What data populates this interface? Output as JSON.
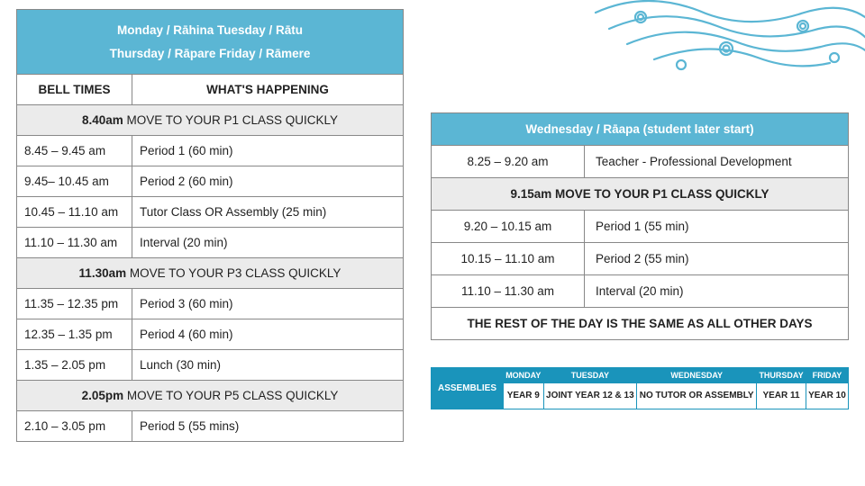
{
  "colors": {
    "header_blue": "#5bb6d4",
    "assembly_teal": "#1a94bb",
    "banner_grey": "#ebebeb",
    "border": "#888888",
    "text": "#222222",
    "white": "#ffffff"
  },
  "main": {
    "header_line1": "Monday / Rāhina   Tuesday / Rātu",
    "header_line2": "Thursday / Rāpare   Friday / Rāmere",
    "col1": "BELL TIMES",
    "col2": "WHAT'S HAPPENING",
    "rows": [
      {
        "type": "banner",
        "bold": "8.40am",
        "text": " MOVE TO YOUR P1 CLASS QUICKLY"
      },
      {
        "type": "row",
        "time": "8.45 – 9.45 am",
        "desc": "Period 1  (60 min)"
      },
      {
        "type": "row",
        "time": "9.45– 10.45 am",
        "desc": "Period 2  (60 min)"
      },
      {
        "type": "row",
        "time": "10.45 – 11.10 am",
        "desc": "Tutor Class OR Assembly (25 min)"
      },
      {
        "type": "row",
        "time": "11.10 – 11.30 am",
        "desc": "Interval  (20 min)"
      },
      {
        "type": "banner",
        "bold": "11.30am",
        "text": " MOVE TO YOUR P3 CLASS QUICKLY"
      },
      {
        "type": "row",
        "time": "11.35 – 12.35 pm",
        "desc": "Period 3  (60 min)"
      },
      {
        "type": "row",
        "time": "12.35 – 1.35 pm",
        "desc": "Period 4  (60 min)"
      },
      {
        "type": "row",
        "time": "1.35 – 2.05 pm",
        "desc": "Lunch  (30 min)"
      },
      {
        "type": "banner",
        "bold": "2.05pm",
        "text": " MOVE TO YOUR P5 CLASS QUICKLY"
      },
      {
        "type": "row",
        "time": "2.10 – 3.05 pm",
        "desc": "Period 5  (55 mins)"
      }
    ]
  },
  "wed": {
    "header": "Wednesday / Rāapa (student later start)",
    "rows": [
      {
        "type": "row",
        "time": "8.25 – 9.20 am",
        "desc": "Teacher - Professional Development"
      },
      {
        "type": "banner",
        "bold": "9.15am  MOVE TO YOUR P1 CLASS QUICKLY"
      },
      {
        "type": "row",
        "time": "9.20 – 10.15 am",
        "desc": "Period 1  (55 min)"
      },
      {
        "type": "row",
        "time": "10.15 – 11.10 am",
        "desc": "Period 2  (55 min)"
      },
      {
        "type": "row",
        "time": "11.10 – 11.30 am",
        "desc": "Interval  (20 min)"
      }
    ],
    "footer": "THE REST OF THE DAY IS THE SAME AS ALL OTHER DAYS"
  },
  "assemblies": {
    "label": "ASSEMBLIES",
    "days": [
      "MONDAY",
      "TUESDAY",
      "WEDNESDAY",
      "THURSDAY",
      "FRIDAY"
    ],
    "values": [
      "YEAR 9",
      "JOINT YEAR 12 & 13",
      "NO TUTOR OR ASSEMBLY",
      "YEAR 11",
      "YEAR 10"
    ]
  }
}
